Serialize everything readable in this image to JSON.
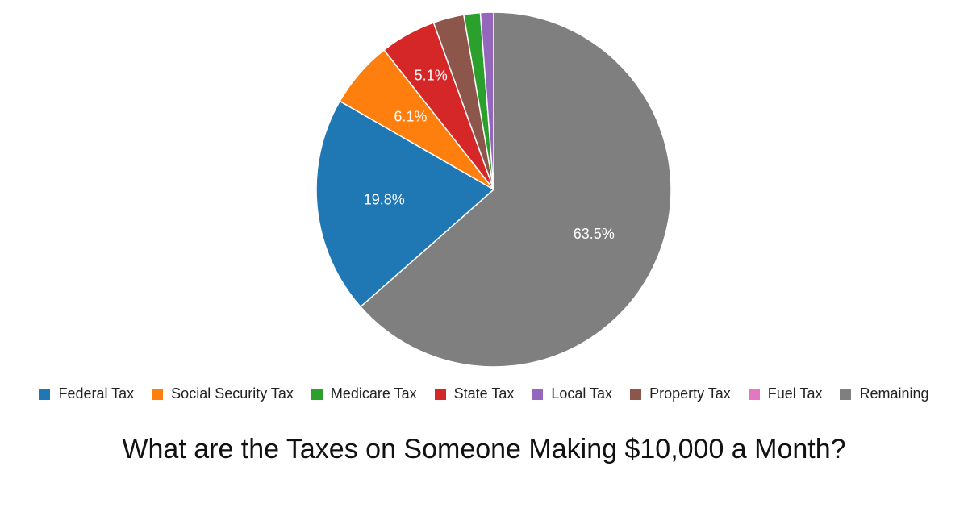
{
  "chart_data": {
    "type": "pie",
    "title": "What are the Taxes on Someone Making $10,000 a Month?",
    "legend_position": "bottom",
    "slices": [
      {
        "name": "Remaining",
        "value": 63.5,
        "label": "63.5%",
        "color": "#7f7f7f"
      },
      {
        "name": "Federal Tax",
        "value": 19.8,
        "label": "19.8%",
        "color": "#1f77b4"
      },
      {
        "name": "Social Security Tax",
        "value": 6.1,
        "label": "6.1%",
        "color": "#ff7f0e"
      },
      {
        "name": "State Tax",
        "value": 5.1,
        "label": "5.1%",
        "color": "#d62728"
      },
      {
        "name": "Property Tax",
        "value": 2.8,
        "label": "",
        "color": "#8c564b"
      },
      {
        "name": "Medicare Tax",
        "value": 1.5,
        "label": "",
        "color": "#2ca02c"
      },
      {
        "name": "Local Tax",
        "value": 1.2,
        "label": "",
        "color": "#9467bd"
      },
      {
        "name": "Fuel Tax",
        "value": 0.0,
        "label": "",
        "color": "#e377c2"
      }
    ],
    "legend": [
      {
        "name": "Federal Tax",
        "color": "#1f77b4"
      },
      {
        "name": "Social Security Tax",
        "color": "#ff7f0e"
      },
      {
        "name": "Medicare Tax",
        "color": "#2ca02c"
      },
      {
        "name": "State Tax",
        "color": "#d62728"
      },
      {
        "name": "Local Tax",
        "color": "#9467bd"
      },
      {
        "name": "Property Tax",
        "color": "#8c564b"
      },
      {
        "name": "Fuel Tax",
        "color": "#e377c2"
      },
      {
        "name": "Remaining",
        "color": "#7f7f7f"
      }
    ]
  }
}
